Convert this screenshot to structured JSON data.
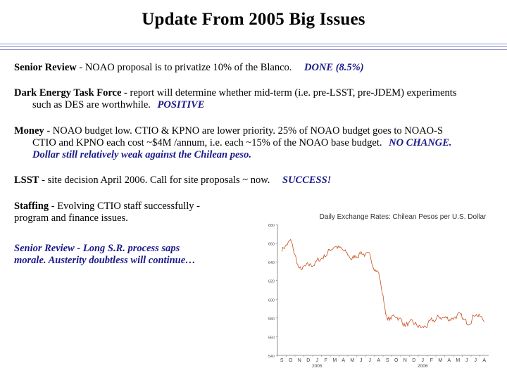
{
  "slide": {
    "title": "Update From 2005 Big Issues"
  },
  "items": [
    {
      "heading": "Senior Review",
      "text": " - NOAO proposal is to privatize 10% of the Blanco.",
      "note": "DONE (8.5%)"
    },
    {
      "heading": "Dark Energy Task Force",
      "text": " - report will determine whether mid-term (i.e. pre-LSST, pre-JDEM) experiments",
      "text2": "such as DES are worthwhile.",
      "note": "POSITIVE"
    },
    {
      "heading": "Money",
      "text": " - NOAO budget low.   CTIO & KPNO are lower priority.   25% of NOAO budget goes to NOAO-S",
      "text2": "CTIO and KPNO each cost ~$4M /annum, i.e. each ~15% of the NOAO base budget.",
      "note": "NO CHANGE.",
      "note2": "Dollar still relatively weak against the Chilean peso."
    },
    {
      "heading": "LSST",
      "text": " - site decision April 2006.   Call for site proposals ~ now.",
      "note": "SUCCESS!"
    },
    {
      "heading": "Staffing",
      "text": " - Evolving CTIO staff successfully  -",
      "text2": "program and finance issues."
    },
    {
      "note": "Senior Review  - Long S.R. process saps",
      "note2": "morale.  Austerity doubtless will continue…"
    }
  ],
  "chart_data": {
    "type": "line",
    "title": "Daily Exchange Rates: Chilean Pesos per U.S. Dollar",
    "y_ticks": [
      "680",
      "660",
      "640",
      "620",
      "600",
      "580",
      "560",
      "540"
    ],
    "ylim": [
      540,
      680
    ],
    "x_month_labels": [
      "S",
      "O",
      "N",
      "D",
      "J",
      "F",
      "M",
      "A",
      "M",
      "J",
      "J",
      "A",
      "S",
      "O",
      "N",
      "D",
      "J",
      "F",
      "M",
      "A",
      "M",
      "J",
      "J",
      "A"
    ],
    "x_year_labels": [
      {
        "label": "2005",
        "month_index": 4
      },
      {
        "label": "2006",
        "month_index": 16
      }
    ],
    "series": [
      {
        "color": "#c8501e",
        "monthly_values": [
          654,
          662,
          631,
          635,
          640,
          648,
          658,
          651,
          643,
          651,
          644,
          628,
          577,
          583,
          573,
          573,
          569,
          575,
          581,
          579,
          583,
          574,
          586,
          576
        ]
      }
    ],
    "colors": {
      "line": "#c8501e",
      "axis": "#777777"
    }
  }
}
